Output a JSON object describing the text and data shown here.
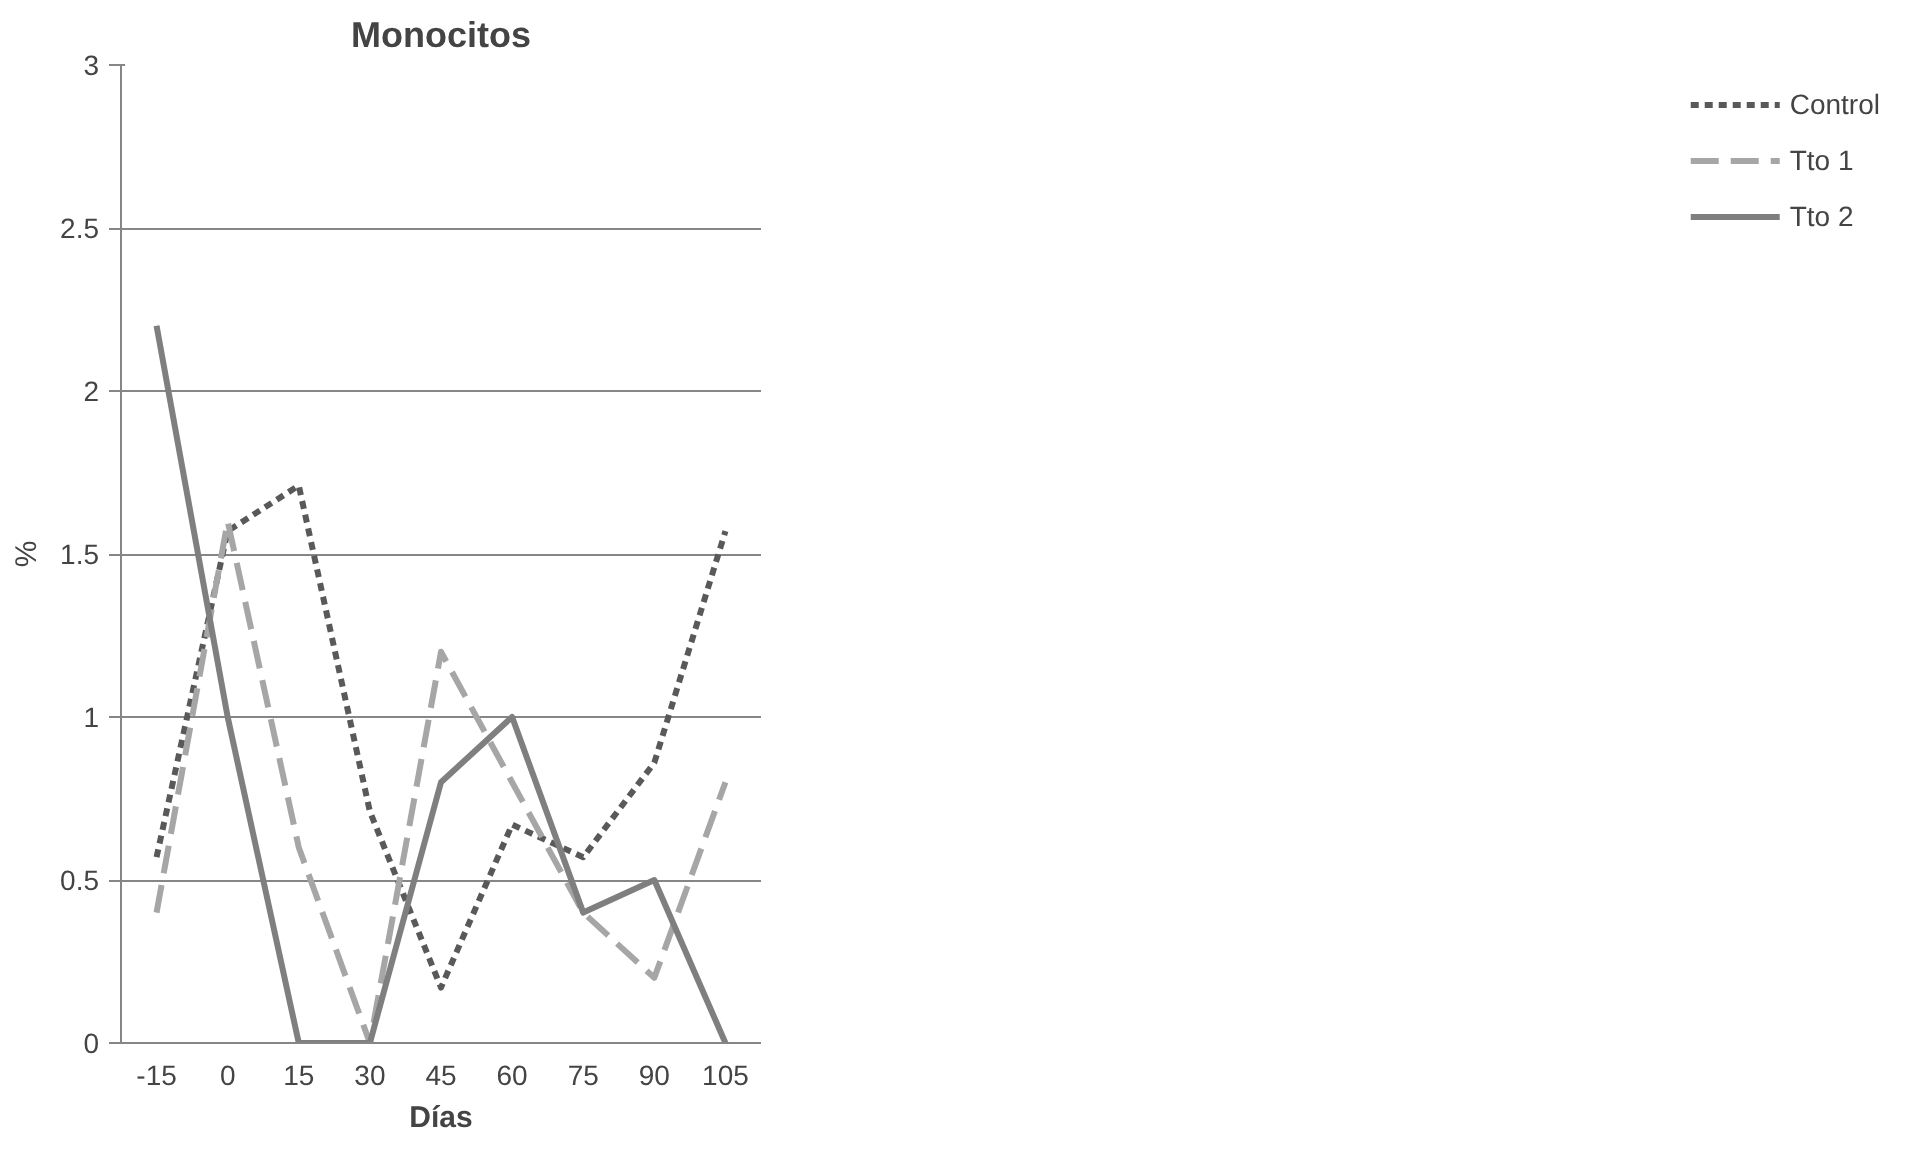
{
  "chart_data": {
    "type": "line",
    "title": "Monocitos",
    "xlabel": "Días",
    "ylabel": "%",
    "categories": [
      "-15",
      "0",
      "15",
      "30",
      "45",
      "60",
      "75",
      "90",
      "105"
    ],
    "series": [
      {
        "name": "Control",
        "color": "#595959",
        "line_style": "dashed",
        "values": [
          0.57,
          1.57,
          1.71,
          0.71,
          0.17,
          0.67,
          0.57,
          0.86,
          1.57
        ]
      },
      {
        "name": "Tto 1",
        "color": "#a6a6a6",
        "line_style": "longdash",
        "values": [
          0.4,
          1.6,
          0.6,
          0,
          1.2,
          0.8,
          0.4,
          0.2,
          0.8
        ]
      },
      {
        "name": "Tto 2",
        "color": "#7f7f7f",
        "line_style": "solid",
        "values": [
          2.2,
          1.0,
          0,
          0,
          0.8,
          1.0,
          0.4,
          0.5,
          0
        ]
      }
    ],
    "ylim": [
      0,
      3
    ],
    "yticks": [
      0,
      0.5,
      1,
      1.5,
      2,
      2.5,
      3
    ],
    "grid": "y",
    "legend": "right"
  }
}
